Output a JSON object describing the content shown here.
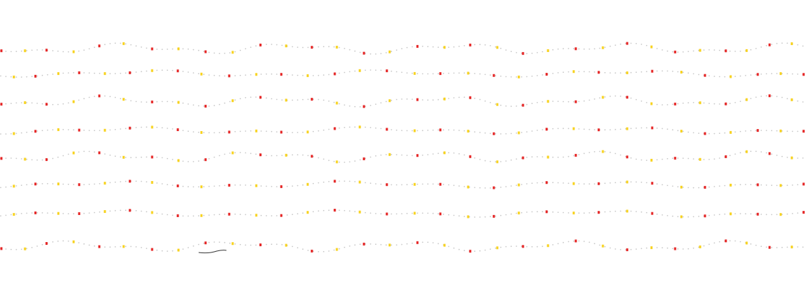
{
  "palette": {
    "background": "#ffffff",
    "dot_gray": "#c8c8c8",
    "red": "#e52222",
    "yellow": "#f7d21c",
    "stroke_dark": "#333333"
  },
  "pattern": {
    "name": "dotted-light-strings",
    "row_count": 8,
    "colored_markers": [
      "red",
      "yellow"
    ]
  }
}
